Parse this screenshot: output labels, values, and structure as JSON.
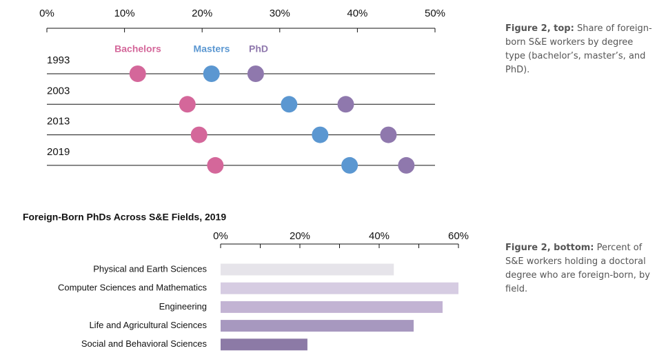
{
  "chart_data": [
    {
      "type": "dot",
      "categories": [
        "1993",
        "2003",
        "2013",
        "2019"
      ],
      "series": [
        {
          "name": "Bachelors",
          "color": "#d4679a",
          "values": [
            11.7,
            18.1,
            19.6,
            21.7
          ]
        },
        {
          "name": "Masters",
          "color": "#5b97d1",
          "values": [
            21.2,
            31.2,
            35.2,
            39.0
          ]
        },
        {
          "name": "PhD",
          "color": "#8f78ad",
          "values": [
            26.9,
            38.5,
            44.0,
            46.3
          ]
        }
      ],
      "xlim": [
        0,
        50
      ],
      "xticks": [
        {
          "value": 0,
          "label": "0%"
        },
        {
          "value": 10,
          "label": "10%"
        },
        {
          "value": 20,
          "label": "20%"
        },
        {
          "value": 30,
          "label": "30%"
        },
        {
          "value": 40,
          "label": "40%"
        },
        {
          "value": 50,
          "label": "50%"
        }
      ],
      "caption": {
        "label": "Figure 2, top:",
        "text": "Share of foreign-born S&E workers by degree type (bachelor’s, master’s, and PhD)."
      }
    },
    {
      "type": "hbar",
      "title": "Foreign-Born PhDs Across S&E Fields, 2019",
      "categories": [
        "Physical and Earth Sciences",
        "Computer Sciences and Mathematics",
        "Engineering",
        "Life and Agricultural Sciences",
        "Social and Behavioral Sciences"
      ],
      "values": [
        43.7,
        60,
        56.0,
        48.7,
        21.9
      ],
      "colors": [
        "#e6e4ea",
        "#d6cce2",
        "#c2b3d3",
        "#a798bf",
        "#8c7aa6"
      ],
      "xlim": [
        0,
        60
      ],
      "xticks": [
        {
          "value": 0,
          "label": "0%"
        },
        {
          "value": 20,
          "label": "20%"
        },
        {
          "value": 40,
          "label": "40%"
        },
        {
          "value": 60,
          "label": "60%"
        }
      ],
      "minor_xticks": [
        10,
        30,
        50
      ],
      "caption": {
        "label": "Figure 2, bottom:",
        "text": "Percent of S&E workers holding a doctoral degree who are foreign-born, by field."
      }
    }
  ]
}
